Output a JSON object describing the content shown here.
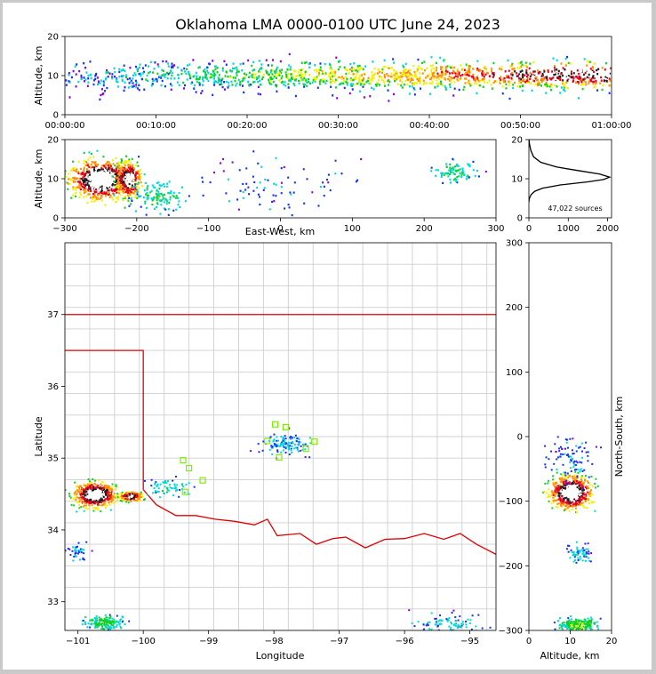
{
  "title": "Oklahoma LMA 0000-0100 UTC June 24, 2023",
  "chart_data": [
    {
      "panel": "time-height",
      "type": "heatmap",
      "xlabel": "",
      "ylabel": "Altitude, km",
      "xticks": [
        "00:00:00",
        "00:10:00",
        "00:20:00",
        "00:30:00",
        "00:40:00",
        "00:50:00",
        "01:00:00"
      ],
      "yticks": [
        0,
        10,
        20
      ],
      "ylim": [
        0,
        20
      ]
    },
    {
      "panel": "east-west-altitude",
      "type": "heatmap",
      "xlabel": "East-West, km",
      "ylabel": "Altitude, km",
      "xticks": [
        -300,
        -200,
        -100,
        0,
        100,
        200,
        300
      ],
      "yticks": [
        0,
        10,
        20
      ],
      "xlim": [
        -300,
        300
      ],
      "ylim": [
        0,
        20
      ]
    },
    {
      "panel": "altitude-histogram",
      "type": "line",
      "xticks": [
        0,
        1000,
        2000
      ],
      "yticks": [
        0,
        10,
        20
      ],
      "xlim": [
        0,
        2100
      ],
      "ylim": [
        0,
        20
      ],
      "annotation": "47,022 sources",
      "x": [
        0,
        5,
        20,
        60,
        150,
        350,
        800,
        1500,
        1900,
        2050,
        1800,
        1300,
        700,
        300,
        120,
        50,
        15,
        3
      ],
      "y": [
        4.0,
        4.6,
        5.2,
        6.0,
        6.8,
        7.6,
        8.4,
        9.2,
        9.8,
        10.4,
        11.2,
        12.0,
        13.0,
        14.2,
        15.6,
        17.2,
        18.8,
        20.0
      ]
    },
    {
      "panel": "plan-view",
      "type": "scatter",
      "xlabel": "Longitude",
      "ylabel": "Latitude",
      "xticks": [
        -101,
        -100,
        -99,
        -98,
        -97,
        -96,
        -95
      ],
      "yticks": [
        33,
        34,
        35,
        36,
        37
      ],
      "xlim": [
        -101.2,
        -94.6
      ],
      "ylim": [
        32.6,
        38.0
      ],
      "stations": [
        {
          "lon": -97.98,
          "lat": 35.47
        },
        {
          "lon": -97.82,
          "lat": 35.43
        },
        {
          "lon": -97.38,
          "lat": 35.23
        },
        {
          "lon": -97.51,
          "lat": 35.13
        },
        {
          "lon": -97.92,
          "lat": 35.01
        },
        {
          "lon": -98.1,
          "lat": 35.24
        },
        {
          "lon": -99.39,
          "lat": 34.97
        },
        {
          "lon": -99.3,
          "lat": 34.86
        },
        {
          "lon": -99.09,
          "lat": 34.69
        },
        {
          "lon": -99.36,
          "lat": 34.53
        }
      ]
    },
    {
      "panel": "north-south-altitude",
      "type": "heatmap",
      "xlabel": "Altitude, km",
      "ylabel": "North-South, km",
      "xticks": [
        0,
        10,
        20
      ],
      "yticks": [
        -300,
        -200,
        -100,
        0,
        100,
        200,
        300
      ],
      "xlim": [
        0,
        20
      ],
      "ylim": [
        -300,
        300
      ]
    }
  ]
}
